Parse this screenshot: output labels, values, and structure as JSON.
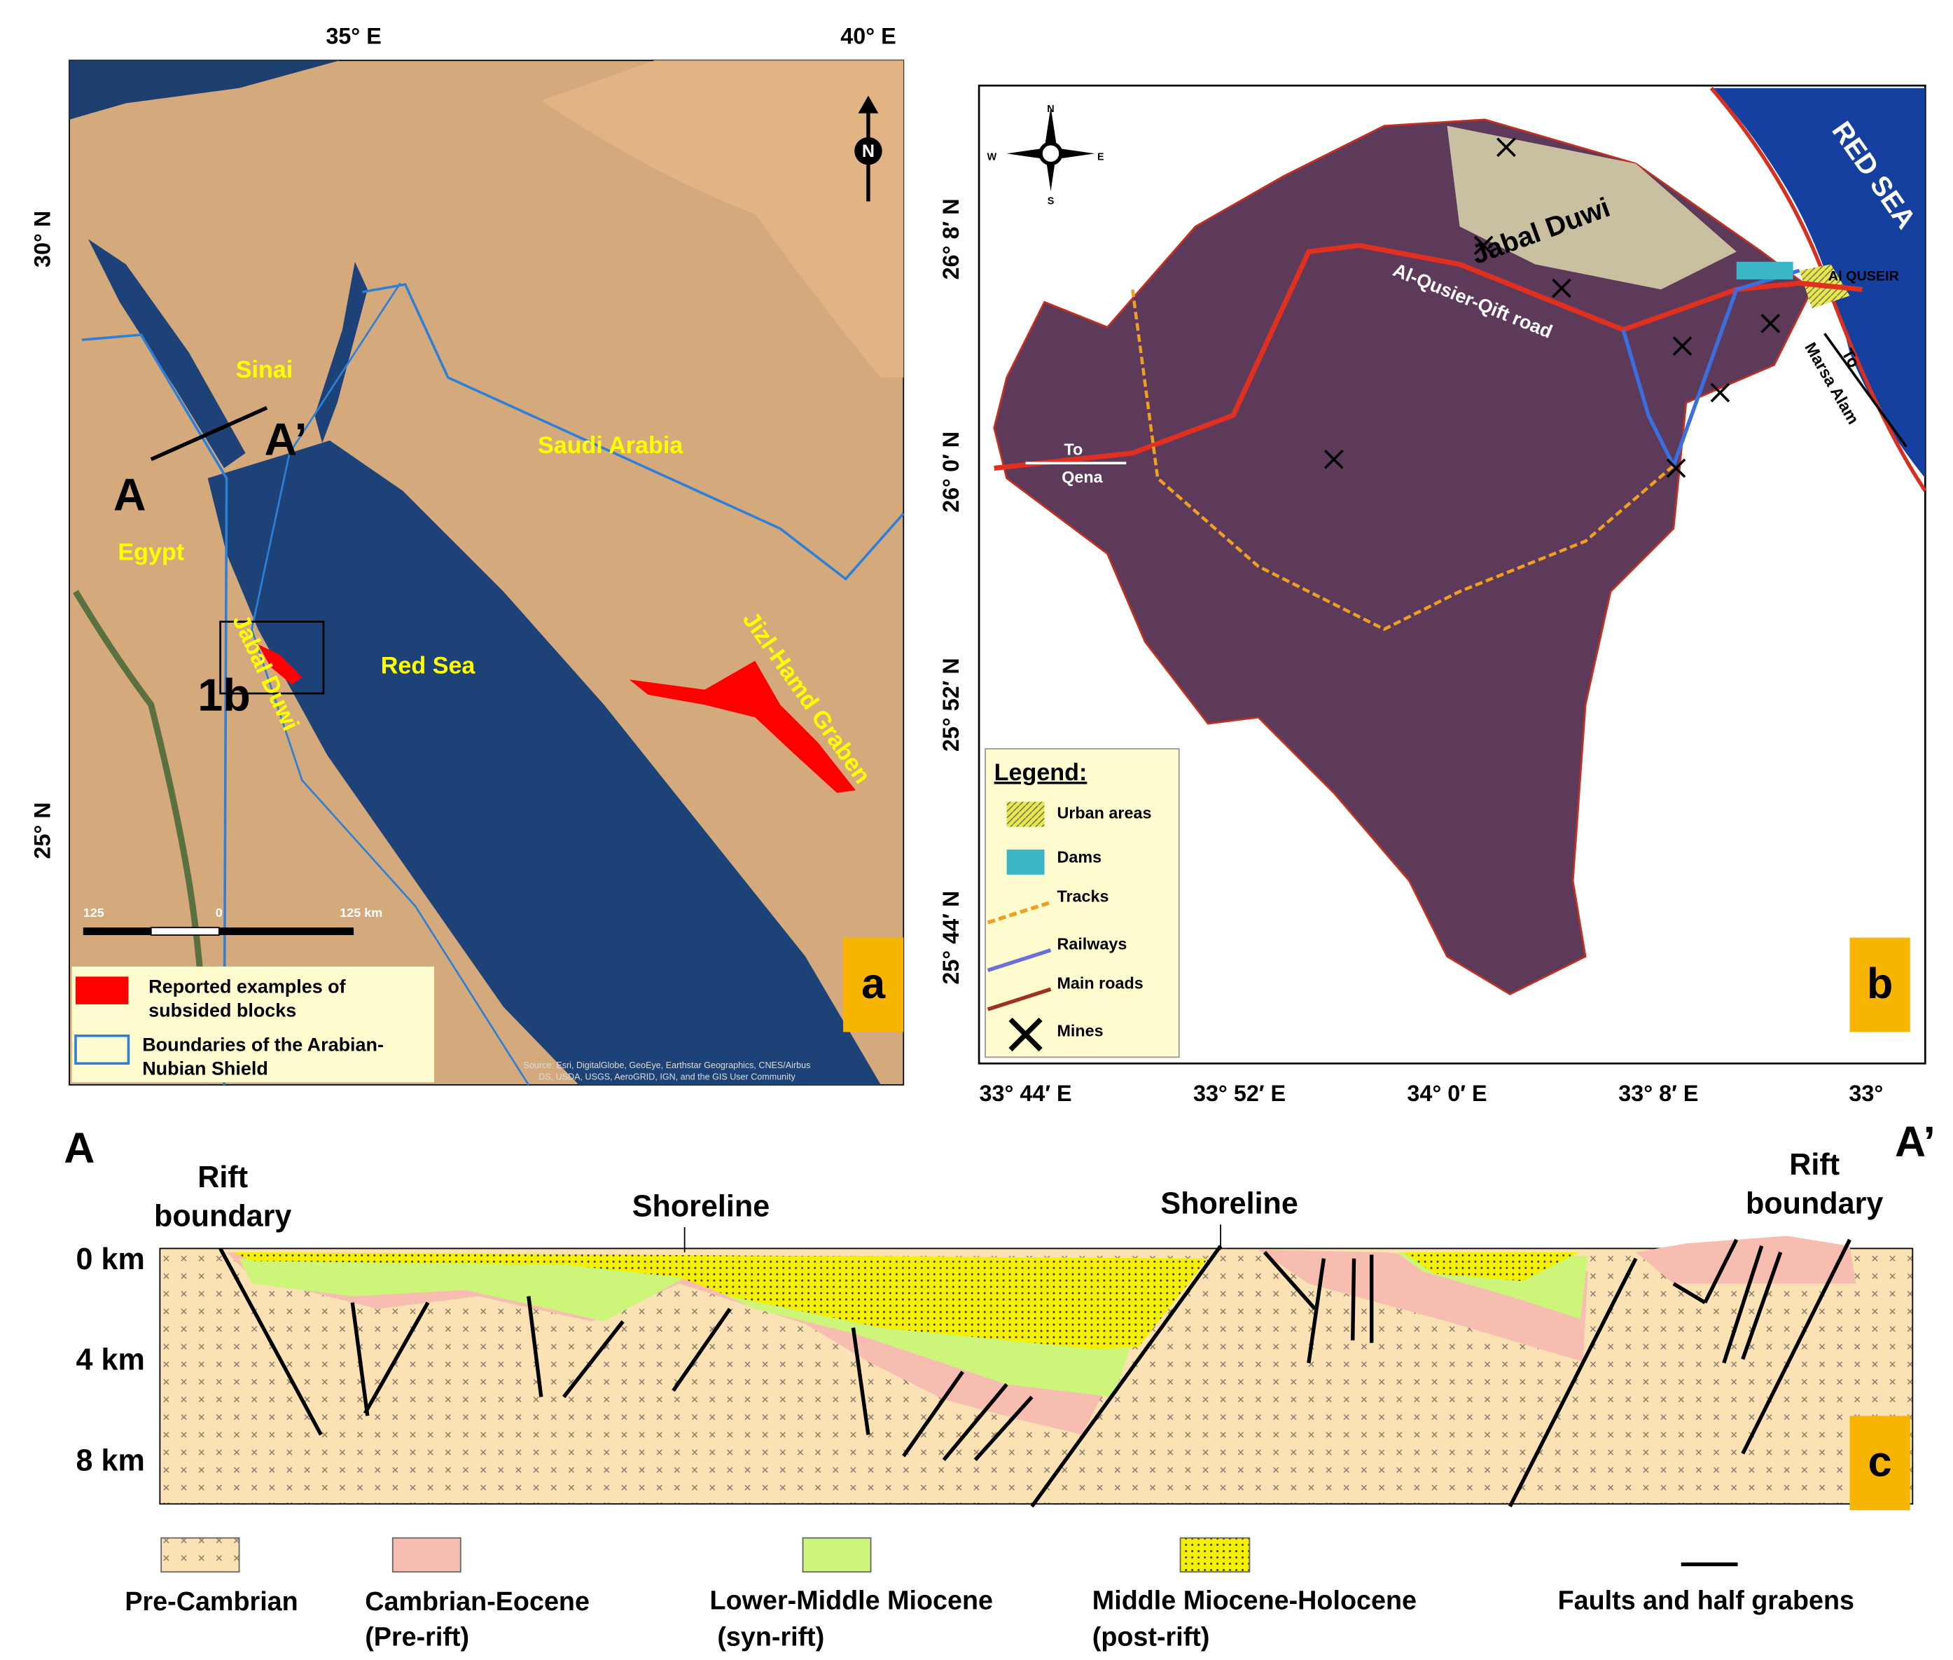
{
  "panel_a": {
    "lon_labels": [
      "35° E",
      "40° E"
    ],
    "lat_labels": [
      "30° N",
      "25° N"
    ],
    "north": "N",
    "places": {
      "sinai": "Sinai",
      "saudi": "Saudi Arabia",
      "egypt": "Egypt",
      "red_sea": "Red Sea",
      "jabal_duwi": "Jabal Duwi",
      "jizl": "Jizl-Hamd Graben",
      "inset": "1b",
      "a": "A",
      "a_prime": "A’"
    },
    "scale": [
      "125",
      "0",
      "125 km"
    ],
    "legend": {
      "red": [
        "Reported examples of",
        "subsided blocks"
      ],
      "blue": [
        "Boundaries of the Arabian-",
        "Nubian Shield"
      ]
    },
    "source": [
      "Source: Esri, DigitalGlobe, GeoEye, Earthstar Geographics, CNES/Airbus",
      "DS, USDA, USGS, AeroGRID, IGN, and the GIS User Community"
    ],
    "tag": "a"
  },
  "panel_b": {
    "compass": [
      "N",
      "E",
      "S",
      "W"
    ],
    "places": {
      "red_sea": "RED SEA",
      "jabal_duwi": "Jabal Duwi",
      "road": "Al-Qusier-Qift road",
      "quseir": "Al QUSEIR",
      "marsa": [
        "To",
        "Marsa Alam"
      ],
      "qena": [
        "To",
        "Qena"
      ]
    },
    "lat_labels": [
      "26° 8′ N",
      "26° 0′ N",
      "25° 52′ N",
      "25° 44′ N"
    ],
    "lon_labels": [
      "33° 44′ E",
      "33° 52′ E",
      "34° 0′ E",
      "33° 8′ E",
      "33°"
    ],
    "legend": {
      "title": "Legend:",
      "items": [
        "Urban areas",
        "Dams",
        "Tracks",
        "Railways",
        "Main roads",
        "Mines"
      ]
    },
    "tag": "b"
  },
  "panel_c": {
    "ends": [
      "A",
      "A’"
    ],
    "labels": {
      "rift_left": [
        "Rift",
        "boundary"
      ],
      "rift_right": [
        "Rift",
        "boundary"
      ],
      "shore_left": "Shoreline",
      "shore_right": "Shoreline"
    },
    "depths": [
      "0 km",
      "4 km",
      "8 km"
    ],
    "legend": [
      [
        "Pre-Cambrian"
      ],
      [
        "Cambrian-Eocene",
        "(Pre-rift)"
      ],
      [
        "Lower-Middle Miocene",
        "(syn-rift)"
      ],
      [
        "Middle Miocene-Holocene",
        "(post-rift)"
      ],
      [
        "Faults and half grabens"
      ]
    ],
    "tag": "c"
  }
}
